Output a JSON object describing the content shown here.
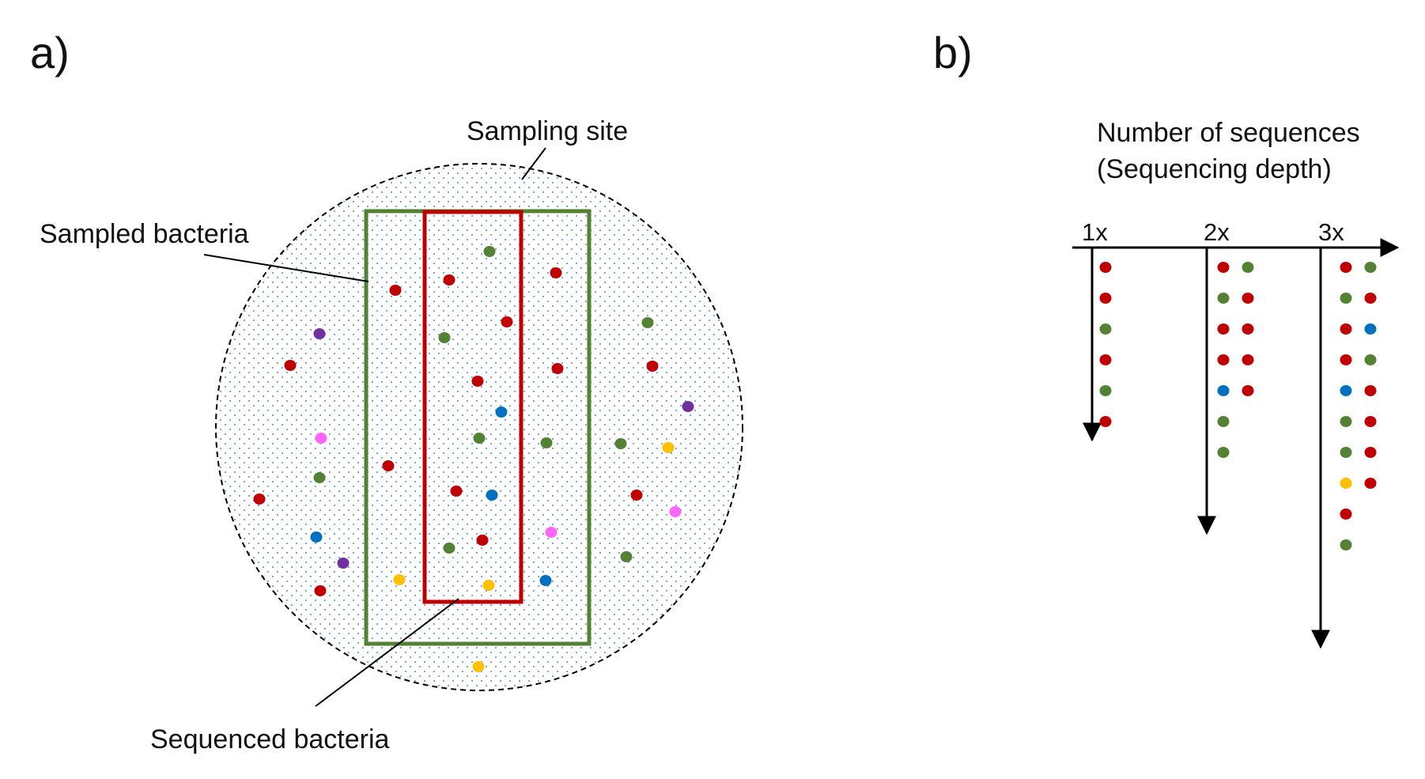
{
  "colors": {
    "red": "#c00000",
    "green": "#548235",
    "blue": "#0070c0",
    "purple": "#7030a0",
    "pink": "#ff66ff",
    "yellow": "#ffc000",
    "site_dots": "#6f9fd8",
    "sampled_box": "#548235",
    "sequenced_box": "#c00000",
    "line": "#000000"
  },
  "panel_a": {
    "label": "a)",
    "sampling_site": "Sampling site",
    "sampled_bacteria": "Sampled bacteria",
    "sequenced_bacteria": "Sequenced bacteria"
  },
  "panel_b": {
    "label": "b)",
    "title_line1": "Number of sequences",
    "title_line2": "(Sequencing depth)",
    "depth_columns": [
      {
        "label": "1x",
        "reads": [
          [
            "red"
          ],
          [
            "red"
          ],
          [
            "green"
          ],
          [
            "red"
          ],
          [
            "green"
          ],
          [
            "red"
          ]
        ]
      },
      {
        "label": "2x",
        "reads": [
          [
            "red",
            "green"
          ],
          [
            "green",
            "red"
          ],
          [
            "red",
            "red"
          ],
          [
            "red",
            "red"
          ],
          [
            "blue",
            "red"
          ],
          [
            "green"
          ],
          [
            "green"
          ]
        ]
      },
      {
        "label": "3x",
        "reads": [
          [
            "red",
            "green"
          ],
          [
            "green",
            "red"
          ],
          [
            "red",
            "blue"
          ],
          [
            "red",
            "green"
          ],
          [
            "blue",
            "red"
          ],
          [
            "green",
            "red"
          ],
          [
            "green",
            "red"
          ],
          [
            "yellow",
            "red"
          ],
          [
            "red"
          ],
          [
            "green"
          ]
        ]
      }
    ]
  }
}
